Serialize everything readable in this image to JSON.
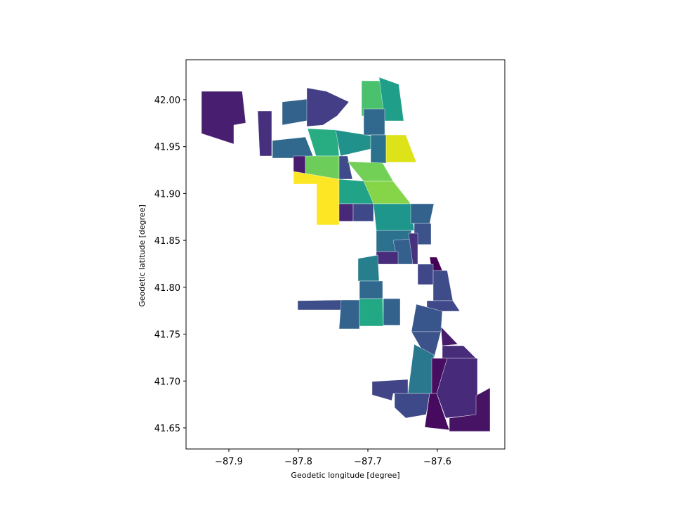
{
  "chart_data": {
    "type": "map",
    "xlabel": "Geodetic longitude [degree]",
    "ylabel": "Geodetic latitude [degree]",
    "xlim": [
      -87.9616,
      -87.503
    ],
    "ylim": [
      41.6275,
      42.0427
    ],
    "xticks": [
      {
        "value": -87.9,
        "label": "−87.9"
      },
      {
        "value": -87.8,
        "label": "−87.8"
      },
      {
        "value": -87.7,
        "label": "−87.7"
      },
      {
        "value": -87.6,
        "label": "−87.6"
      }
    ],
    "yticks": [
      41.65,
      {
        "value": 41.7,
        "label": "41.70"
      },
      41.75,
      {
        "value": 41.8,
        "label": "41.80"
      },
      41.85,
      {
        "value": 41.9,
        "label": "41.90"
      },
      41.95,
      {
        "value": 42.0,
        "label": "42.00"
      }
    ],
    "grid": false
  }
}
